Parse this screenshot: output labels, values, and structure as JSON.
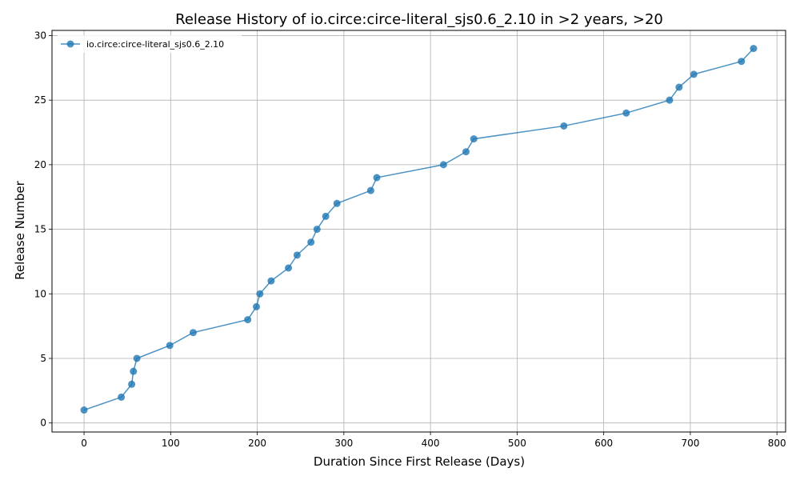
{
  "chart_data": {
    "type": "line",
    "title": "Release History of io.circe:circe-literal_sjs0.6_2.10 in >2 years, >20",
    "xlabel": "Duration Since First Release (Days)",
    "ylabel": "Release Number",
    "xlim": [
      -37,
      810
    ],
    "ylim": [
      -0.7,
      30.4
    ],
    "xticks": [
      0,
      100,
      200,
      300,
      400,
      500,
      600,
      700,
      800
    ],
    "yticks": [
      0,
      5,
      10,
      15,
      20,
      25,
      30
    ],
    "grid": true,
    "legend_position": "top-left",
    "series": [
      {
        "name": "io.circe:circe-literal_sjs0.6_2.10",
        "color": "#1f77b4",
        "x": [
          0,
          43,
          55,
          57,
          61,
          99,
          126,
          189,
          199,
          203,
          216,
          236,
          246,
          262,
          269,
          279,
          292,
          331,
          338,
          415,
          441,
          450,
          554,
          626,
          676,
          687,
          704,
          759,
          773
        ],
        "y": [
          1,
          2,
          3,
          4,
          5,
          6,
          7,
          8,
          9,
          10,
          11,
          12,
          13,
          14,
          15,
          16,
          17,
          18,
          19,
          20,
          21,
          22,
          23,
          24,
          25,
          26,
          27,
          28,
          29
        ]
      }
    ]
  }
}
